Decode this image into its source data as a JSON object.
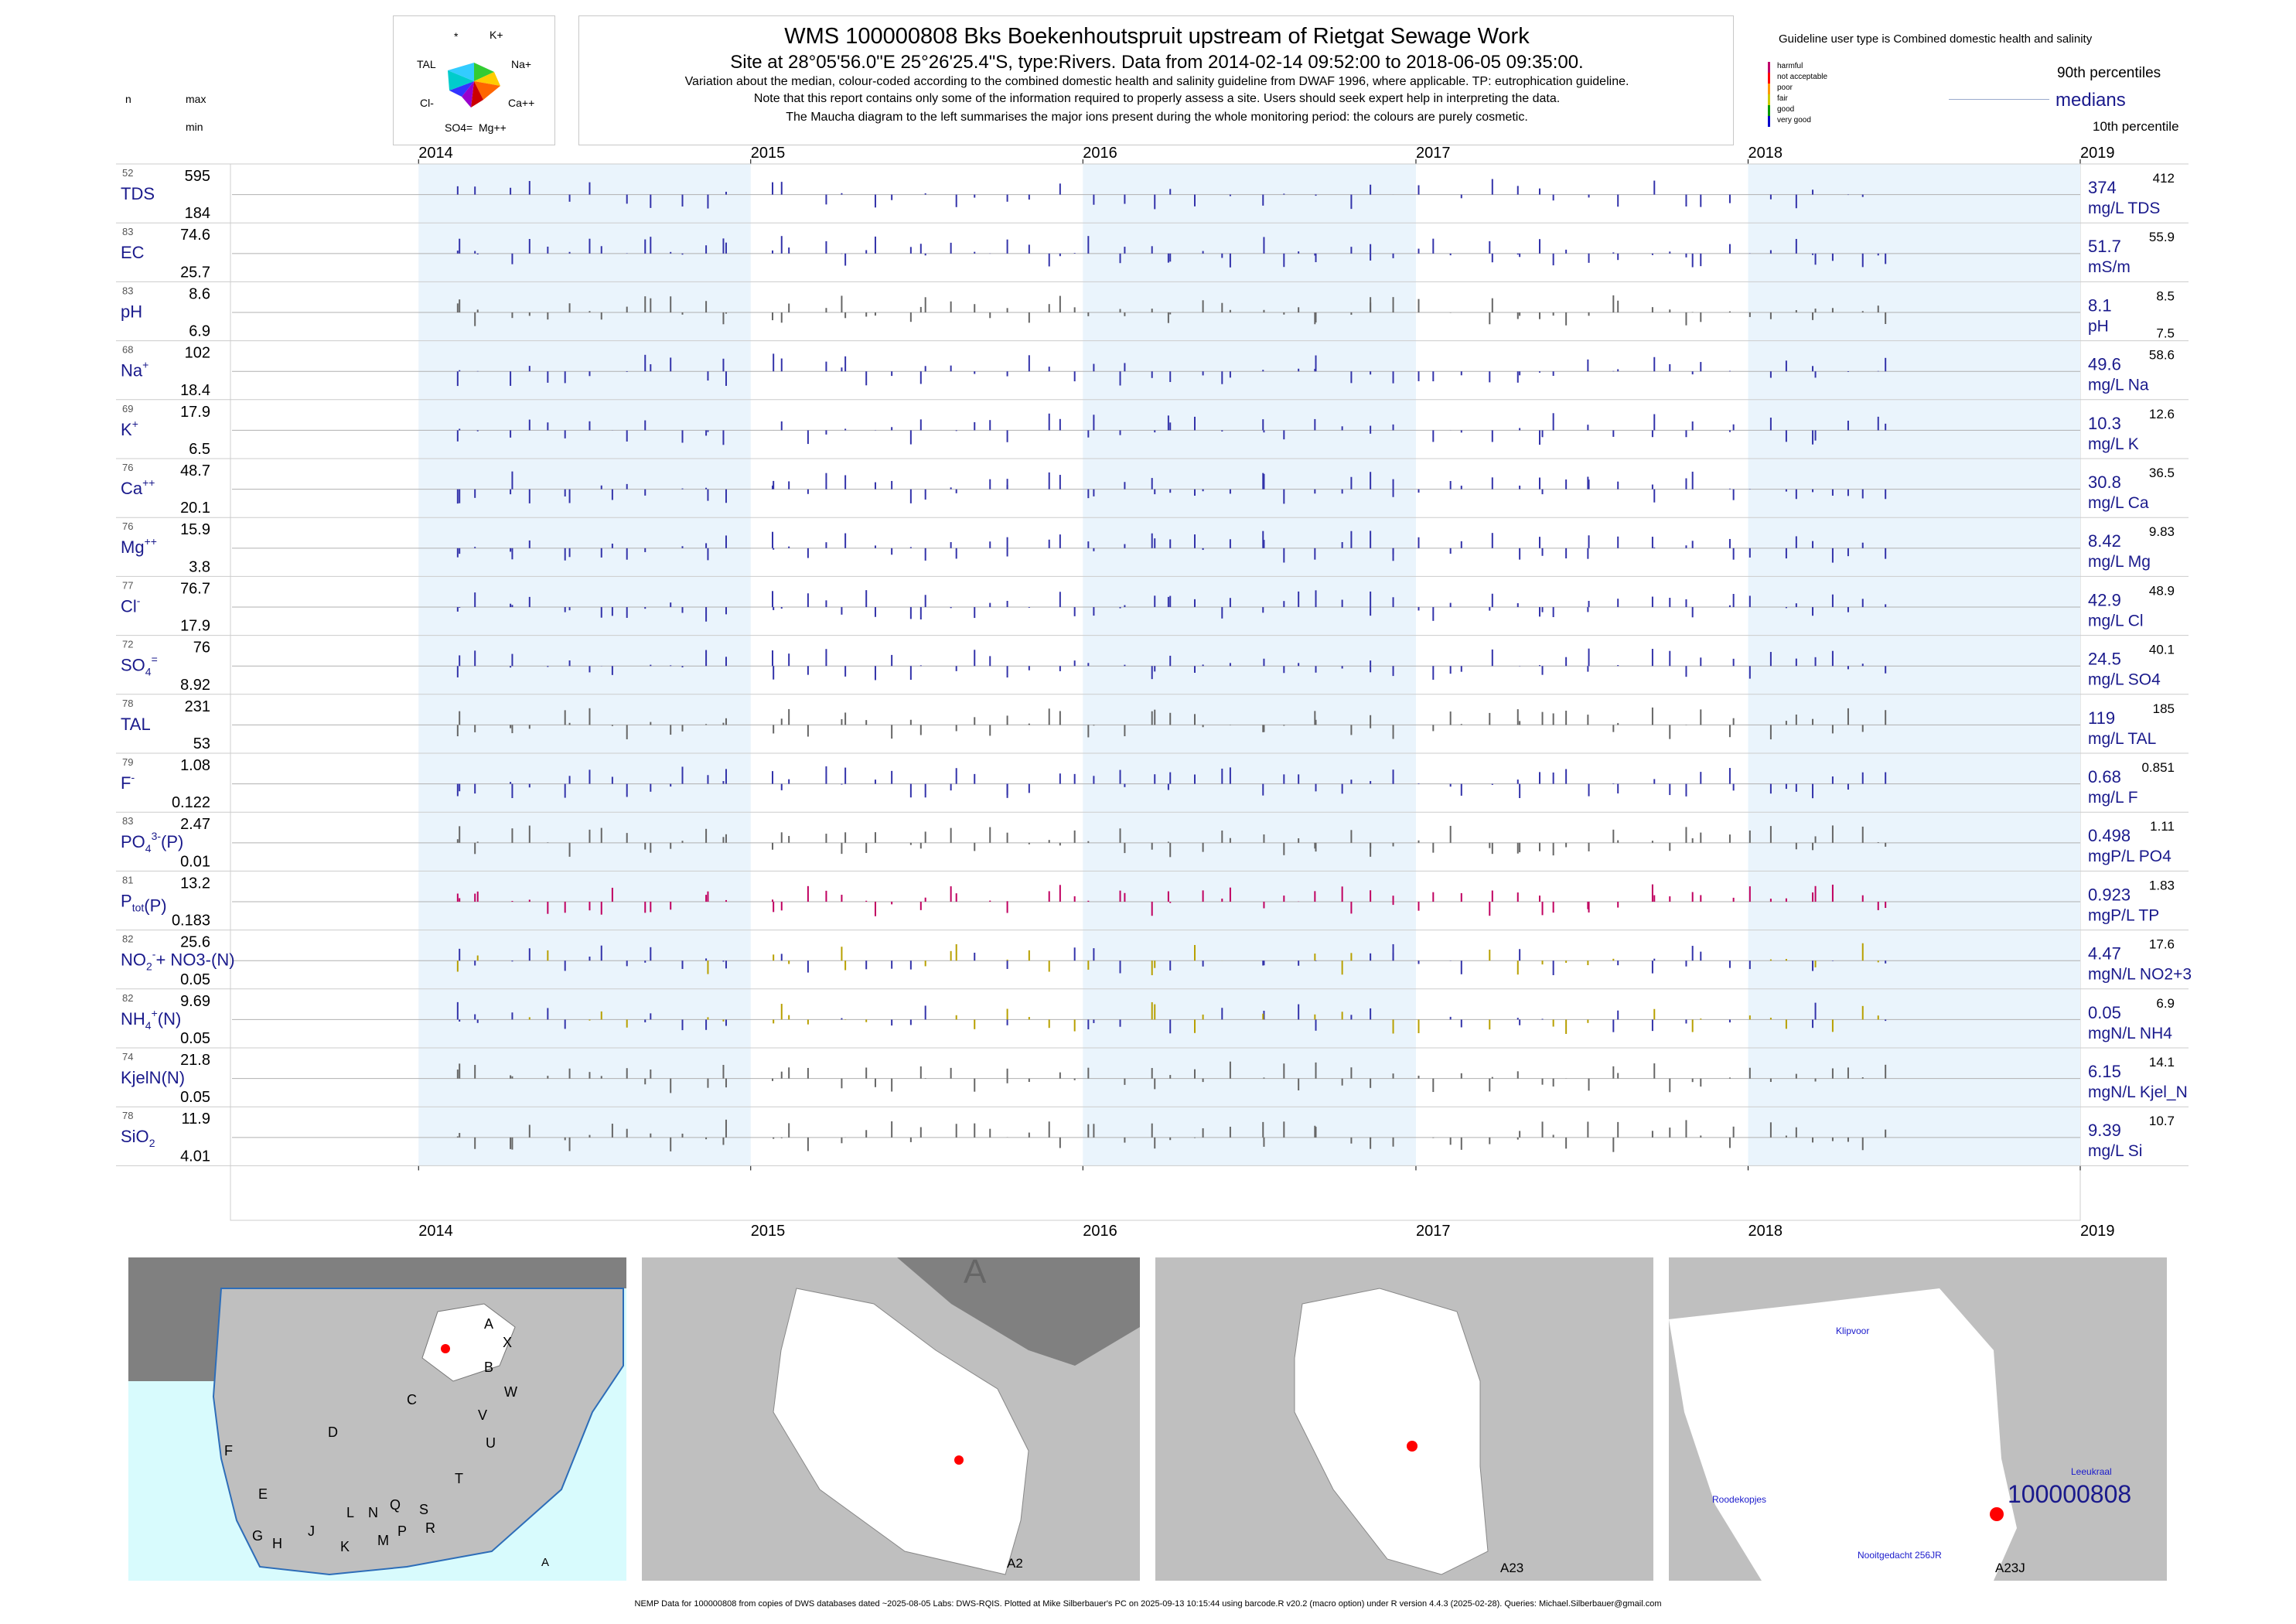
{
  "header": {
    "title": "WMS 100000808  Bks Boekenhoutspruit upstream of Rietgat Sewage Work",
    "subtitle": "Site at 28°05'56.0\"E 25°26'25.4\"S, type:Rivers.  Data from 2014-02-14 09:52:00 to 2018-06-05 09:35:00.",
    "note1": "Variation about the median,  colour-coded according to the combined domestic health and salinity guideline from DWAF 1996, where applicable. TP: eutrophication guideline.",
    "note2": "Note that this report contains only some of the information required to properly assess a site. Users should seek expert help in interpreting the data.",
    "note3": "The Maucha diagram to the left summarises the major ions present during the whole monitoring period: the colours are purely cosmetic."
  },
  "maucha": {
    "labels": [
      "*",
      "K+",
      "TAL",
      "Na+",
      "Cl-",
      "Ca++",
      "SO4=",
      "Mg++"
    ]
  },
  "left_headers": {
    "n": "n",
    "max": "max",
    "min": "min"
  },
  "guideline": {
    "title": "Guideline user type is Combined domestic health and salinity",
    "levels": [
      {
        "label": "harmful",
        "color": "#c0006b"
      },
      {
        "label": "not acceptable",
        "color": "#ff0000"
      },
      {
        "label": "poor",
        "color": "#ff9900"
      },
      {
        "label": "fair",
        "color": "#cccc00"
      },
      {
        "label": "good",
        "color": "#009900"
      },
      {
        "label": "very good",
        "color": "#0000cc"
      }
    ],
    "p90": "90th percentiles",
    "medians": "medians",
    "p10": "10th percentile"
  },
  "chart_data": {
    "type": "bar",
    "description_type": "barcode time series",
    "x_years": [
      "2014",
      "2015",
      "2016",
      "2017",
      "2018",
      "2019"
    ],
    "xlim": [
      "2013-06-10",
      "2019-01-01"
    ],
    "shaded_years": [
      "2014",
      "2016",
      "2018"
    ],
    "rows": [
      {
        "id": "TDS",
        "label": "TDS",
        "n": "52",
        "max": "595",
        "min": "184",
        "median": "374",
        "unit": "mg/L TDS",
        "p90": "412",
        "p10": ""
      },
      {
        "id": "EC",
        "label": "EC",
        "n": "83",
        "max": "74.6",
        "min": "25.7",
        "median": "51.7",
        "unit": "mS/m",
        "p90": "55.9",
        "p10": ""
      },
      {
        "id": "pH",
        "label": "pH",
        "n": "83",
        "max": "8.6",
        "min": "6.9",
        "median": "8.1",
        "unit": "pH",
        "p90": "8.5",
        "p10": "7.5"
      },
      {
        "id": "Na",
        "label": "Na",
        "sup": "+",
        "n": "68",
        "max": "102",
        "min": "18.4",
        "median": "49.6",
        "unit": "mg/L Na",
        "p90": "58.6",
        "p10": ""
      },
      {
        "id": "K",
        "label": "K",
        "sup": "+",
        "n": "69",
        "max": "17.9",
        "min": "6.5",
        "median": "10.3",
        "unit": "mg/L K",
        "p90": "12.6",
        "p10": ""
      },
      {
        "id": "Ca",
        "label": "Ca",
        "sup": "++",
        "n": "76",
        "max": "48.7",
        "min": "20.1",
        "median": "30.8",
        "unit": "mg/L Ca",
        "p90": "36.5",
        "p10": ""
      },
      {
        "id": "Mg",
        "label": "Mg",
        "sup": "++",
        "n": "76",
        "max": "15.9",
        "min": "3.8",
        "median": "8.42",
        "unit": "mg/L Mg",
        "p90": "9.83",
        "p10": ""
      },
      {
        "id": "Cl",
        "label": "Cl",
        "sup": "-",
        "n": "77",
        "max": "76.7",
        "min": "17.9",
        "median": "42.9",
        "unit": "mg/L Cl",
        "p90": "48.9",
        "p10": ""
      },
      {
        "id": "SO4",
        "label": "SO",
        "sub": "4",
        "sup": "=",
        "n": "72",
        "max": "76",
        "min": "8.92",
        "median": "24.5",
        "unit": "mg/L SO4",
        "p90": "40.1",
        "p10": ""
      },
      {
        "id": "TAL",
        "label": "TAL",
        "n": "78",
        "max": "231",
        "min": "53",
        "median": "119",
        "unit": "mg/L TAL",
        "p90": "185",
        "p10": ""
      },
      {
        "id": "F",
        "label": "F",
        "sup": "-",
        "n": "79",
        "max": "1.08",
        "min": "0.122",
        "median": "0.68",
        "unit": "mg/L F",
        "p90": "0.851",
        "p10": ""
      },
      {
        "id": "PO4",
        "label": "PO",
        "sub": "4",
        "sup": "3-",
        "tail": "(P)",
        "n": "83",
        "max": "2.47",
        "min": "0.01",
        "median": "0.498",
        "unit": "mgP/L PO4",
        "p90": "1.11",
        "p10": ""
      },
      {
        "id": "TP",
        "label": "P",
        "sub": "tot",
        "tail": "(P)",
        "n": "81",
        "max": "13.2",
        "min": "0.183",
        "median": "0.923",
        "unit": "mgP/L TP",
        "p90": "1.83",
        "p10": ""
      },
      {
        "id": "NO3",
        "label": "NO",
        "sub": "2",
        "sup": "-",
        "tail": "+ NO3-(N)",
        "n": "82",
        "max": "25.6",
        "min": "0.05",
        "median": "4.47",
        "unit": "mgN/L NO2+3",
        "p90": "17.6",
        "p10": ""
      },
      {
        "id": "NH4",
        "label": "NH",
        "sub": "4",
        "sup": "+",
        "tail": "(N)",
        "n": "82",
        "max": "9.69",
        "min": "0.05",
        "median": "0.05",
        "unit": "mgN/L NH4",
        "p90": "6.9",
        "p10": ""
      },
      {
        "id": "Kjel",
        "label": "KjelN(N)",
        "n": "74",
        "max": "21.8",
        "min": "0.05",
        "median": "6.15",
        "unit": "mgN/L Kjel_N",
        "p90": "14.1",
        "p10": ""
      },
      {
        "id": "SiO2",
        "label": "SiO",
        "sub": "2",
        "n": "78",
        "max": "11.9",
        "min": "4.01",
        "median": "9.39",
        "unit": "mg/L Si",
        "p90": "10.7",
        "p10": ""
      }
    ]
  },
  "maps": {
    "panel1_letters": [
      "A",
      "B",
      "X",
      "W",
      "C",
      "D",
      "V",
      "U",
      "T",
      "F",
      "E",
      "G",
      "H",
      "J",
      "K",
      "L",
      "N",
      "Q",
      "M",
      "P",
      "S",
      "R"
    ],
    "panel1_label": "A",
    "panel2_big": "A",
    "panel2_label": "A2",
    "panel3_label": "A23",
    "panel4_places": [
      "Klipvoor",
      "Leeukraal",
      "Roodekopjes",
      "Nooitgedacht 256JR"
    ],
    "panel4_site": "100000808",
    "panel4_label": "A23J"
  },
  "footer": "NEMP Data for 100000808 from copies of DWS databases dated ~2025-08-05 Labs: DWS-RQIS. Plotted at Mike Silberbauer's PC on 2025-09-13 10:15:44 using barcode.R v20.2 (macro option) under R version 4.4.3 (2025-02-28). Queries: Michael.Silberbauer@gmail.com"
}
